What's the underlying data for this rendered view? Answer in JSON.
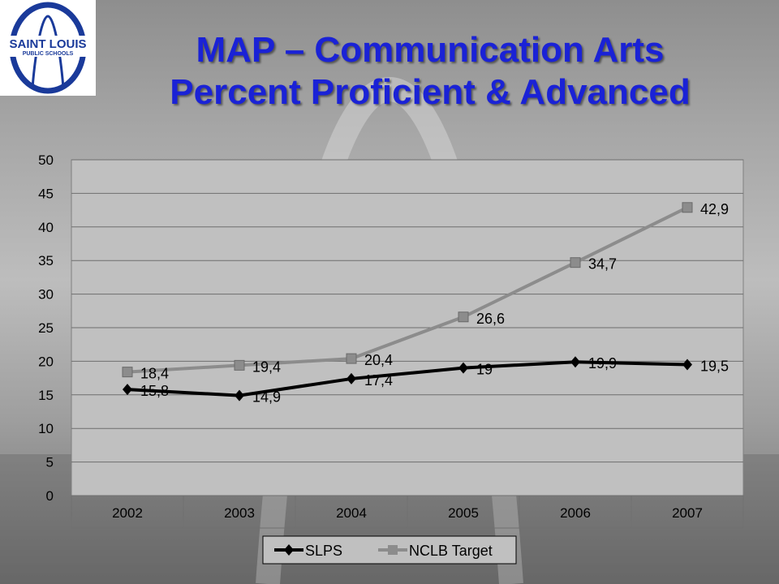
{
  "page": {
    "title_line1": "MAP – Communication Arts",
    "title_line2": "Percent Proficient & Advanced",
    "logo": {
      "line1": "SAINT LOUIS",
      "line2": "PUBLIC SCHOOLS",
      "icon": "saint-louis-arch-logo"
    },
    "colors": {
      "title": "#1a22d6",
      "slps": "#000000",
      "nclb": "#8c8c8c",
      "plot_bg": "#c0c0c0"
    }
  },
  "chart_data": {
    "type": "line",
    "categories": [
      "2002",
      "2003",
      "2004",
      "2005",
      "2006",
      "2007"
    ],
    "ylim": [
      0,
      50
    ],
    "yticks": [
      0,
      5,
      10,
      15,
      20,
      25,
      30,
      35,
      40,
      45,
      50
    ],
    "grid": true,
    "legend_position": "bottom",
    "series": [
      {
        "name": "SLPS",
        "values": [
          15.8,
          14.9,
          17.4,
          19,
          19.9,
          19.5
        ],
        "labels": [
          "15,8",
          "14,9",
          "17,4",
          "19",
          "19,9",
          "19,5"
        ],
        "marker": "diamond",
        "color": "#000000"
      },
      {
        "name": "NCLB Target",
        "values": [
          18.4,
          19.4,
          20.4,
          26.6,
          34.7,
          42.9
        ],
        "labels": [
          "18,4",
          "19,4",
          "20,4",
          "26,6",
          "34,7",
          "42,9"
        ],
        "marker": "square",
        "color": "#8c8c8c"
      }
    ]
  }
}
